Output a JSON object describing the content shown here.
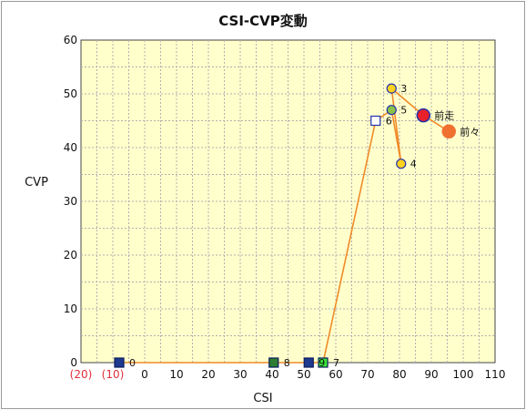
{
  "chart_data": {
    "type": "line",
    "title": "CSI-CVP変動",
    "xlabel": "CSI",
    "ylabel": "CVP",
    "xlim": [
      -20,
      110
    ],
    "ylim": [
      0,
      60
    ],
    "x_ticks": [
      {
        "value": -20,
        "label": "(20)",
        "color": "#e0303a"
      },
      {
        "value": -10,
        "label": "(10)",
        "color": "#e0303a"
      },
      {
        "value": 0,
        "label": "0"
      },
      {
        "value": 10,
        "label": "10"
      },
      {
        "value": 20,
        "label": "20"
      },
      {
        "value": 30,
        "label": "30"
      },
      {
        "value": 40,
        "label": "40"
      },
      {
        "value": 50,
        "label": "50"
      },
      {
        "value": 60,
        "label": "60"
      },
      {
        "value": 70,
        "label": "70"
      },
      {
        "value": 80,
        "label": "80"
      },
      {
        "value": 90,
        "label": "90"
      },
      {
        "value": 100,
        "label": "100"
      },
      {
        "value": 110,
        "label": "110"
      }
    ],
    "y_ticks": [
      {
        "value": 0,
        "label": "0"
      },
      {
        "value": 10,
        "label": "10"
      },
      {
        "value": 20,
        "label": "20"
      },
      {
        "value": 30,
        "label": "30"
      },
      {
        "value": 40,
        "label": "40"
      },
      {
        "value": 50,
        "label": "50"
      },
      {
        "value": 60,
        "label": "60"
      }
    ],
    "grid": true,
    "colors": {
      "plot_bg": "#ffffcc",
      "grid": "#b0b0b0",
      "line": "#f08a28",
      "label_red": "#e0303a"
    },
    "points": [
      {
        "label": "0",
        "x": -8,
        "y": 0,
        "shape": "square",
        "fill": "#1e3a8f",
        "stroke": "#0a1a5a"
      },
      {
        "label": "8",
        "x": 40.5,
        "y": 0,
        "shape": "square",
        "fill": "#2e7d32",
        "stroke": "#0a1a5a"
      },
      {
        "label": "9",
        "x": 51.5,
        "y": 0,
        "shape": "square",
        "fill": "#1e3a8f",
        "stroke": "#0a1a5a"
      },
      {
        "label": "7",
        "x": 56,
        "y": 0,
        "shape": "square",
        "fill": "#39e639",
        "stroke": "#0a1a5a"
      },
      {
        "label": "6",
        "x": 72.5,
        "y": 45,
        "shape": "square",
        "fill": "#ffffff",
        "stroke": "#2233aa"
      },
      {
        "label": "5",
        "x": 77.5,
        "y": 47,
        "shape": "circle",
        "fill": "#8bc34a",
        "stroke": "#2233aa"
      },
      {
        "label": "4",
        "x": 80.5,
        "y": 37,
        "shape": "circle",
        "fill": "#ffd21e",
        "stroke": "#2233aa"
      },
      {
        "label": "3",
        "x": 77.5,
        "y": 51,
        "shape": "circle",
        "fill": "#ffd21e",
        "stroke": "#2233aa"
      },
      {
        "label": "前走",
        "x": 87.5,
        "y": 46,
        "shape": "big-circle",
        "fill": "#e8202a",
        "stroke": "#2233aa"
      },
      {
        "label": "前々",
        "x": 95.5,
        "y": 43,
        "shape": "big-circle",
        "fill": "#f07030",
        "stroke": "#f07030"
      }
    ],
    "path_order": [
      "0",
      "8",
      "9",
      "7",
      "6",
      "5",
      "4",
      "3",
      "前走",
      "前々"
    ]
  }
}
